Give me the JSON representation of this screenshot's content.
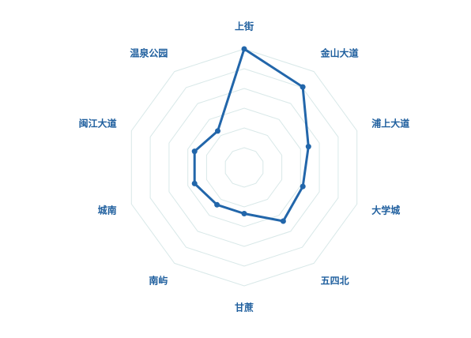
{
  "chart_data": {
    "type": "radar",
    "categories": [
      "上街",
      "金山大道",
      "浦上大道",
      "大学城",
      "五四北",
      "甘蔗",
      "南屿",
      "城南",
      "闽江大道",
      "温泉公园"
    ],
    "values": [
      100,
      84,
      57,
      52,
      56,
      39,
      39,
      44,
      44,
      38
    ],
    "rmax": 100,
    "grid_levels": 6,
    "colors": {
      "series": "#2266aa",
      "grid": "#d8e8e8",
      "label": "#1f5f9e"
    }
  }
}
